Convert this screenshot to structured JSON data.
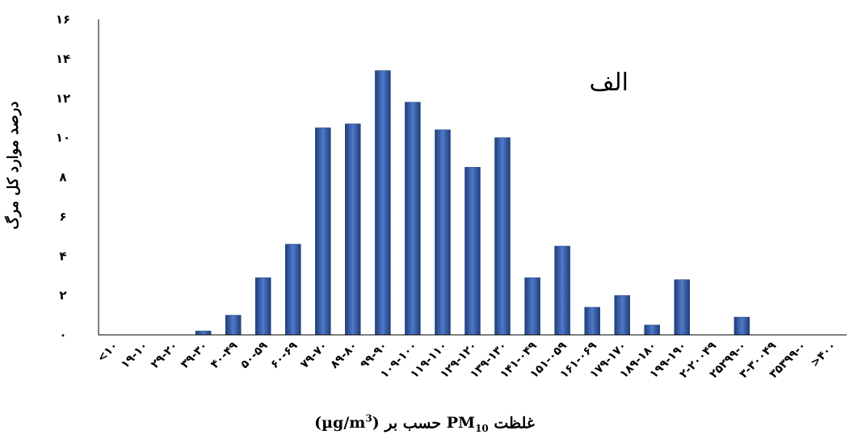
{
  "chart_data": {
    "type": "bar",
    "panel_label": "الف",
    "ylabel": "درصد موارد کل مرگ",
    "xlabel": {
      "prefix": "غلظت",
      "pollutant": "PM",
      "pollutant_sub": "10",
      "middle": "حسب  بر",
      "unit_open": "(µg/m",
      "unit_sup": "3",
      "unit_close": ")"
    },
    "ylim": [
      0,
      16
    ],
    "yticks": [
      {
        "value": 0,
        "label": "٠"
      },
      {
        "value": 2,
        "label": "٢"
      },
      {
        "value": 4,
        "label": "۴"
      },
      {
        "value": 6,
        "label": "۶"
      },
      {
        "value": 8,
        "label": "٨"
      },
      {
        "value": 10,
        "label": "١٠"
      },
      {
        "value": 12,
        "label": "١٢"
      },
      {
        "value": 14,
        "label": "١۴"
      },
      {
        "value": 16,
        "label": "١۶"
      }
    ],
    "categories": [
      "<١٠",
      "١٠-١٩",
      "٢٠-٢٩",
      "٣٠-٣٩",
      "۴٠-۴٩",
      "۵٠-۵٩",
      "۶٠-۶٩",
      "٧٠-٧٩",
      "٨٠-٨٩",
      "٩٠-٩٩",
      "١٠٠-١٠٩",
      "١١٠-١١٩",
      "١٢٠-١٢٩",
      "١٣٠-١٣٩",
      "١۴٠-١۴٩",
      "١۵٠-١۵٩",
      "١۶٠-١۶٩",
      "١٧٠-١٧٩",
      "١٨٠-١٨٩",
      "١٩٠-١٩٩",
      "٢٠٠-٢۴٩",
      "٢۵٠-٢٩٩",
      "٣٠٠-٣۴٩",
      "٣۵٠-٣٩٩",
      ">۴٠٠"
    ],
    "values": [
      0,
      0,
      0,
      0.2,
      1.0,
      2.9,
      4.6,
      10.5,
      10.7,
      13.4,
      11.8,
      10.4,
      8.5,
      10.0,
      2.9,
      4.5,
      1.4,
      2.0,
      0.5,
      2.8,
      0,
      0.9,
      0,
      0,
      0
    ],
    "colors": {
      "bar_dark": "#1f3e7a",
      "bar_mid": "#3a62b0",
      "bar_light": "#4f79c9",
      "axis": "#000000"
    },
    "grid": false,
    "legend": "none"
  }
}
